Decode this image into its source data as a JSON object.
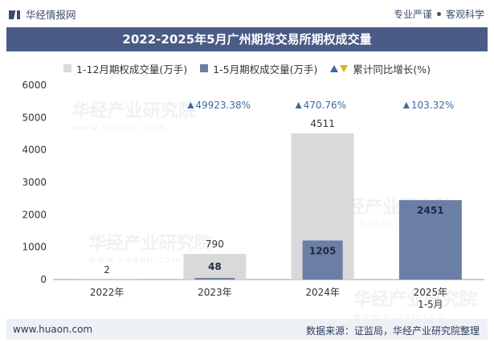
{
  "header": {
    "brand": "华经情报网",
    "slogan_left": "专业严谨",
    "slogan_right": "客观科学"
  },
  "watermark": {
    "text": "华经产业研究院",
    "url": "www.huaon.com"
  },
  "footer": {
    "url": "www.huaon.com",
    "source": "数据来源：证监局，华经产业研究院整理"
  },
  "colors": {
    "bar_total": "#d9d9d9",
    "bar_partial": "#6b7ea6",
    "growth": "#3d6aa1",
    "growth_down": "#e0b021",
    "title_bg": "#4a5b85"
  },
  "chart_data": {
    "type": "bar",
    "title": "2022-2025年5月广州期货交易所期权成交量",
    "categories": [
      "2022年",
      "2023年",
      "2024年",
      "2025年\n1-5月"
    ],
    "series": [
      {
        "name": "1-12月期权成交量(万手)",
        "values": [
          2,
          790,
          4511,
          null
        ]
      },
      {
        "name": "1-5月期权成交量(万手)",
        "values": [
          null,
          48,
          1205,
          2451
        ]
      }
    ],
    "growth": {
      "name": "累计同比增长(%)",
      "labels": [
        null,
        "49923.38%",
        "470.76%",
        "103.32%"
      ]
    },
    "yticks": [
      0,
      1000,
      2000,
      3000,
      4000,
      5000,
      6000
    ],
    "ylim": [
      0,
      6000
    ],
    "xlabel": "",
    "ylabel": ""
  }
}
